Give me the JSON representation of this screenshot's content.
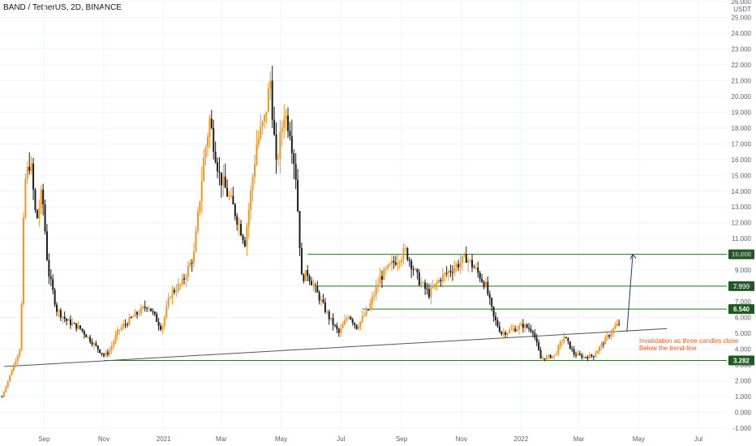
{
  "header": {
    "title": "BAND / TetherUS, 2D, BINANCE"
  },
  "price_axis": {
    "unit": "USDT"
  },
  "colors": {
    "up": "#f7941d",
    "down": "#1c1c1c",
    "level_line": "#1b7a1b",
    "level_tag_bg": "#1e5a1e",
    "level_tag_text": "#ffffff",
    "trendline": "#555555",
    "target_arrow": "#1f3b73",
    "annotation": "#f15a24",
    "axis_text": "#5d606b",
    "grid": "#f0f3fa"
  },
  "annotation": {
    "line1": "Invalidation as three candles close",
    "line2": "Below the trend-line"
  },
  "chart_data": {
    "type": "candlestick",
    "title": "BAND / TetherUS, 2D, BINANCE",
    "xlabel": "",
    "ylabel": "USDT",
    "ylim": [
      -1.0,
      26.0
    ],
    "y_ticks": [
      "26.000",
      "25.000",
      "24.000",
      "23.000",
      "22.000",
      "21.000",
      "20.000",
      "19.000",
      "18.000",
      "17.000",
      "16.000",
      "15.000",
      "14.000",
      "13.000",
      "12.000",
      "11.000",
      "10.000",
      "9.000",
      "8.000",
      "7.000",
      "6.000",
      "5.000",
      "4.000",
      "3.000",
      "2.000",
      "1.000",
      "0.000",
      "-1.000"
    ],
    "x_range": [
      "2020-07-18",
      "2022-07-30"
    ],
    "x_ticks": [
      {
        "date": "2020-09-01",
        "label": "Sep"
      },
      {
        "date": "2020-11-01",
        "label": "Nov"
      },
      {
        "date": "2021-01-01",
        "label": "2021"
      },
      {
        "date": "2021-03-01",
        "label": "Mar"
      },
      {
        "date": "2021-05-01",
        "label": "May"
      },
      {
        "date": "2021-07-01",
        "label": "Jul"
      },
      {
        "date": "2021-09-01",
        "label": "Sep"
      },
      {
        "date": "2021-11-01",
        "label": "Nov"
      },
      {
        "date": "2022-01-01",
        "label": "2022"
      },
      {
        "date": "2022-03-01",
        "label": "Mar"
      },
      {
        "date": "2022-05-01",
        "label": "May"
      },
      {
        "date": "2022-07-01",
        "label": "Jul"
      }
    ],
    "price_path": [
      [
        "2020-07-20",
        1.0
      ],
      [
        "2020-08-01",
        3.0
      ],
      [
        "2020-08-08",
        4.2
      ],
      [
        "2020-08-12",
        14.5
      ],
      [
        "2020-08-18",
        16.0
      ],
      [
        "2020-08-24",
        12.0
      ],
      [
        "2020-08-30",
        14.0
      ],
      [
        "2020-09-05",
        9.0
      ],
      [
        "2020-09-14",
        6.5
      ],
      [
        "2020-09-24",
        5.8
      ],
      [
        "2020-10-08",
        5.3
      ],
      [
        "2020-10-22",
        4.3
      ],
      [
        "2020-11-01",
        3.6
      ],
      [
        "2020-11-06",
        3.8
      ],
      [
        "2020-11-16",
        5.2
      ],
      [
        "2020-11-30",
        6.0
      ],
      [
        "2020-12-16",
        6.8
      ],
      [
        "2020-12-30",
        5.3
      ],
      [
        "2021-01-08",
        7.5
      ],
      [
        "2021-01-20",
        8.2
      ],
      [
        "2021-02-01",
        10.0
      ],
      [
        "2021-02-11",
        16.0
      ],
      [
        "2021-02-17",
        18.5
      ],
      [
        "2021-02-27",
        15.0
      ],
      [
        "2021-03-13",
        13.0
      ],
      [
        "2021-03-25",
        10.8
      ],
      [
        "2021-04-06",
        17.0
      ],
      [
        "2021-04-14",
        18.5
      ],
      [
        "2021-04-20",
        21.0
      ],
      [
        "2021-04-26",
        15.5
      ],
      [
        "2021-05-04",
        19.0
      ],
      [
        "2021-05-10",
        18.0
      ],
      [
        "2021-05-16",
        15.0
      ],
      [
        "2021-05-22",
        8.5
      ],
      [
        "2021-05-28",
        8.8
      ],
      [
        "2021-06-07",
        7.5
      ],
      [
        "2021-06-19",
        6.0
      ],
      [
        "2021-06-29",
        5.0
      ],
      [
        "2021-07-09",
        6.2
      ],
      [
        "2021-07-17",
        5.4
      ],
      [
        "2021-07-29",
        6.5
      ],
      [
        "2021-08-10",
        8.5
      ],
      [
        "2021-08-24",
        9.5
      ],
      [
        "2021-09-05",
        10.2
      ],
      [
        "2021-09-19",
        8.3
      ],
      [
        "2021-09-29",
        7.5
      ],
      [
        "2021-10-11",
        8.5
      ],
      [
        "2021-10-25",
        9.2
      ],
      [
        "2021-11-06",
        9.8
      ],
      [
        "2021-11-16",
        9.0
      ],
      [
        "2021-11-26",
        8.0
      ],
      [
        "2021-12-04",
        6.0
      ],
      [
        "2021-12-12",
        5.0
      ],
      [
        "2021-12-22",
        5.2
      ],
      [
        "2022-01-03",
        5.5
      ],
      [
        "2022-01-13",
        5.2
      ],
      [
        "2022-01-21",
        3.4
      ],
      [
        "2022-02-04",
        3.6
      ],
      [
        "2022-02-14",
        4.8
      ],
      [
        "2022-02-24",
        3.7
      ],
      [
        "2022-03-06",
        3.5
      ],
      [
        "2022-03-16",
        3.6
      ],
      [
        "2022-03-28",
        4.6
      ],
      [
        "2022-04-07",
        5.4
      ],
      [
        "2022-04-11",
        5.6
      ]
    ],
    "levels": [
      {
        "price": 10.0,
        "label": "10.000",
        "from": "2021-05-28"
      },
      {
        "price": 7.99,
        "label": "7.990",
        "from": "2021-06-07"
      },
      {
        "price": 6.54,
        "label": "6.540",
        "from": "2021-07-23"
      },
      {
        "price": 3.282,
        "label": "3.282",
        "from": "2020-11-01"
      }
    ],
    "trendline": {
      "from": [
        "2020-07-22",
        2.9
      ],
      "to": [
        "2022-05-30",
        5.3
      ]
    },
    "target_arrow": {
      "from": [
        "2022-04-19",
        5.1
      ],
      "to": [
        "2022-04-25",
        10.0
      ]
    },
    "grid": true,
    "legend": "none"
  }
}
